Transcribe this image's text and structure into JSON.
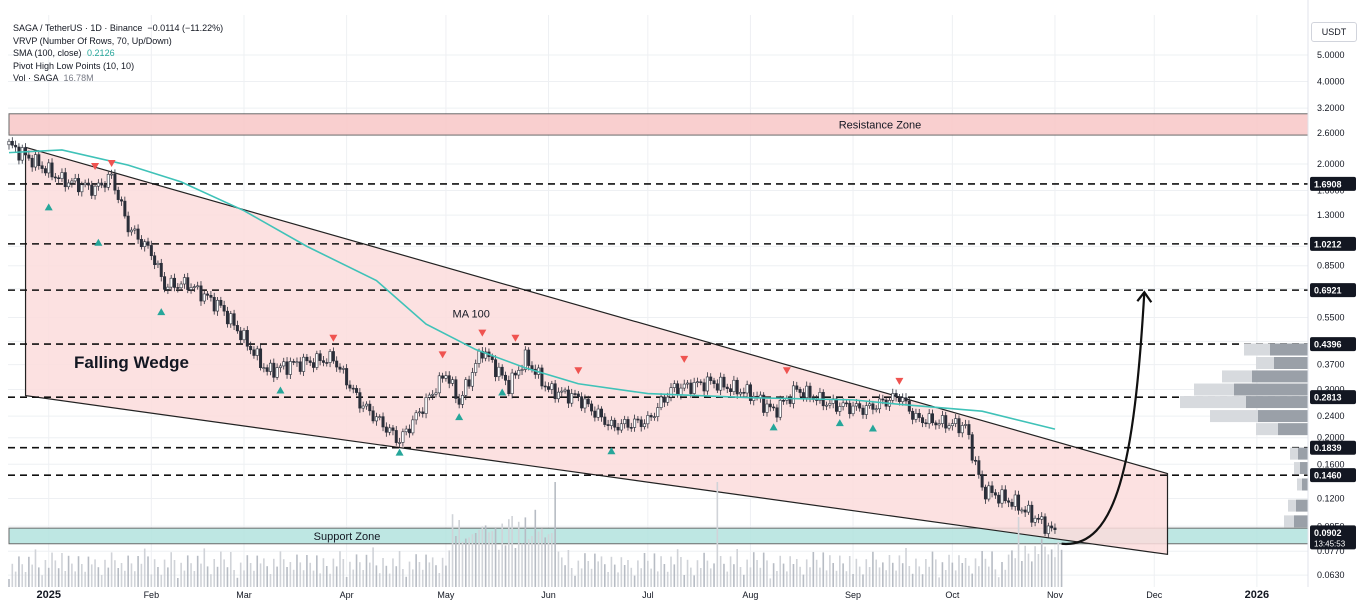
{
  "legend": {
    "symbol": "SAGA / TetherUS · 1D · Binance",
    "change": "−0.0114 (−11.22%)",
    "vrvp": "VRVP (Number Of Rows, 70, Up/Down)",
    "sma": "SMA (100, close)",
    "sma_value": "0.2126",
    "pivot": "Pivot High Low Points (10, 10)",
    "vol": "Vol · SAGA",
    "vol_value": "16.78M"
  },
  "currency": "USDT",
  "colors": {
    "up": "#26a69a",
    "down": "#ef5350",
    "wedge_fill": "#fbdcdc",
    "resistance_fill": "#f9caca",
    "support_fill": "#b7e5e1",
    "sma_line": "#3fc2b8"
  },
  "chart_data": {
    "type": "candlestick",
    "y_scale": "log",
    "ylim": [
      0.057,
      7.0
    ],
    "x_axis_labels": [
      {
        "label": "2025",
        "date": "2025-01-01"
      },
      {
        "label": "Feb",
        "date": "2025-02-01"
      },
      {
        "label": "Mar",
        "date": "2025-03-01"
      },
      {
        "label": "Apr",
        "date": "2025-04-01"
      },
      {
        "label": "May",
        "date": "2025-05-01"
      },
      {
        "label": "Jun",
        "date": "2025-06-01"
      },
      {
        "label": "Jul",
        "date": "2025-07-01"
      },
      {
        "label": "Aug",
        "date": "2025-08-01"
      },
      {
        "label": "Sep",
        "date": "2025-09-01"
      },
      {
        "label": "Oct",
        "date": "2025-10-01"
      },
      {
        "label": "Nov",
        "date": "2025-11-01"
      },
      {
        "label": "Dec",
        "date": "2025-12-01"
      },
      {
        "label": "2026",
        "date": "2026-01-01"
      }
    ],
    "y_tick_labels": [
      "5.0000",
      "4.0000",
      "3.2000",
      "2.6000",
      "2.0000",
      "1.6000",
      "1.3000",
      "1.0000",
      "0.8500",
      "0.7000",
      "0.5500",
      "0.4500",
      "0.3700",
      "0.3000",
      "0.2400",
      "0.2000",
      "0.1600",
      "0.1200",
      "0.0950",
      "0.0770",
      "0.0630"
    ],
    "horizontal_levels": [
      {
        "label": "1.6908",
        "value": 1.6908
      },
      {
        "label": "1.0212",
        "value": 1.0212
      },
      {
        "label": "0.6921",
        "value": 0.6921
      },
      {
        "label": "0.4396",
        "value": 0.4396
      },
      {
        "label": "0.2813",
        "value": 0.2813
      },
      {
        "label": "0.1839",
        "value": 0.1839
      },
      {
        "label": "0.1460",
        "value": 0.146
      }
    ],
    "last_price": {
      "label": "0.0902",
      "value": 0.0902,
      "countdown": "13:45:53"
    },
    "zones": [
      {
        "name": "Resistance Zone",
        "from": 2.55,
        "to": 3.05,
        "start": "2024-12-20",
        "end": "2026-01-31"
      },
      {
        "name": "Support Zone",
        "from": 0.082,
        "to": 0.0935,
        "start": "2024-12-20",
        "end": "2026-01-31"
      }
    ],
    "annotations": [
      {
        "text": "Falling Wedge",
        "date": "2025-01-26",
        "price": 0.36
      },
      {
        "text": "MA 100",
        "date": "2025-05-03",
        "price": 0.55
      }
    ],
    "wedge": {
      "upper": [
        {
          "date": "2024-12-25",
          "price": 2.3
        },
        {
          "date": "2025-12-05",
          "price": 0.148
        }
      ],
      "lower": [
        {
          "date": "2024-12-25",
          "price": 0.285
        },
        {
          "date": "2025-12-05",
          "price": 0.075
        }
      ]
    },
    "projection": {
      "from": {
        "date": "2025-11-03",
        "price": 0.082
      },
      "to": {
        "date": "2025-11-28",
        "price": 0.68
      }
    },
    "anchors": [
      [
        "2024-12-20",
        2.35
      ],
      [
        "2025-01-05",
        1.75
      ],
      [
        "2025-01-15",
        1.62
      ],
      [
        "2025-01-20",
        1.8
      ],
      [
        "2025-01-25",
        1.18
      ],
      [
        "2025-02-01",
        0.95
      ],
      [
        "2025-02-05",
        0.72
      ],
      [
        "2025-02-12",
        0.73
      ],
      [
        "2025-02-22",
        0.6
      ],
      [
        "2025-03-01",
        0.46
      ],
      [
        "2025-03-08",
        0.35
      ],
      [
        "2025-03-15",
        0.37
      ],
      [
        "2025-03-28",
        0.39
      ],
      [
        "2025-04-05",
        0.27
      ],
      [
        "2025-04-17",
        0.195
      ],
      [
        "2025-04-25",
        0.27
      ],
      [
        "2025-05-01",
        0.345
      ],
      [
        "2025-05-05",
        0.27
      ],
      [
        "2025-05-12",
        0.42
      ],
      [
        "2025-05-20",
        0.31
      ],
      [
        "2025-05-25",
        0.39
      ],
      [
        "2025-06-01",
        0.3
      ],
      [
        "2025-06-10",
        0.28
      ],
      [
        "2025-06-20",
        0.22
      ],
      [
        "2025-07-01",
        0.23
      ],
      [
        "2025-07-08",
        0.3
      ],
      [
        "2025-07-20",
        0.32
      ],
      [
        "2025-08-01",
        0.29
      ],
      [
        "2025-08-08",
        0.25
      ],
      [
        "2025-08-15",
        0.3
      ],
      [
        "2025-08-25",
        0.265
      ],
      [
        "2025-09-05",
        0.255
      ],
      [
        "2025-09-15",
        0.285
      ],
      [
        "2025-09-20",
        0.235
      ],
      [
        "2025-10-05",
        0.22
      ],
      [
        "2025-10-10",
        0.13
      ],
      [
        "2025-10-20",
        0.115
      ],
      [
        "2025-10-28",
        0.098
      ],
      [
        "2025-11-01",
        0.09
      ]
    ],
    "sma100": [
      [
        "2024-12-20",
        2.2
      ],
      [
        "2025-01-05",
        2.25
      ],
      [
        "2025-01-25",
        1.98
      ],
      [
        "2025-02-10",
        1.72
      ],
      [
        "2025-03-01",
        1.35
      ],
      [
        "2025-03-20",
        1.0
      ],
      [
        "2025-04-10",
        0.75
      ],
      [
        "2025-04-25",
        0.52
      ],
      [
        "2025-05-10",
        0.42
      ],
      [
        "2025-05-25",
        0.36
      ],
      [
        "2025-06-10",
        0.315
      ],
      [
        "2025-07-01",
        0.29
      ],
      [
        "2025-08-01",
        0.28
      ],
      [
        "2025-09-01",
        0.275
      ],
      [
        "2025-09-15",
        0.265
      ],
      [
        "2025-10-10",
        0.25
      ],
      [
        "2025-11-01",
        0.215
      ]
    ],
    "pivot_highs": [
      [
        "2025-01-15",
        1.95
      ],
      [
        "2025-01-20",
        2.0
      ],
      [
        "2025-03-28",
        0.46
      ],
      [
        "2025-04-30",
        0.4
      ],
      [
        "2025-05-12",
        0.48
      ],
      [
        "2025-05-22",
        0.46
      ],
      [
        "2025-06-10",
        0.35
      ],
      [
        "2025-07-12",
        0.385
      ],
      [
        "2025-08-12",
        0.35
      ],
      [
        "2025-09-15",
        0.32
      ]
    ],
    "pivot_lows": [
      [
        "2025-01-01",
        1.4
      ],
      [
        "2025-01-16",
        1.04
      ],
      [
        "2025-02-04",
        0.58
      ],
      [
        "2025-03-12",
        0.3
      ],
      [
        "2025-04-17",
        0.178
      ],
      [
        "2025-05-05",
        0.24
      ],
      [
        "2025-05-18",
        0.295
      ],
      [
        "2025-06-20",
        0.18
      ],
      [
        "2025-08-08",
        0.22
      ],
      [
        "2025-08-28",
        0.228
      ],
      [
        "2025-09-07",
        0.218
      ]
    ],
    "volume_profile": [
      {
        "price": 0.42,
        "buy": 26,
        "sell": 38
      },
      {
        "price": 0.375,
        "buy": 18,
        "sell": 34
      },
      {
        "price": 0.335,
        "buy": 30,
        "sell": 56
      },
      {
        "price": 0.3,
        "buy": 40,
        "sell": 74
      },
      {
        "price": 0.27,
        "buy": 66,
        "sell": 62
      },
      {
        "price": 0.24,
        "buy": 48,
        "sell": 50
      },
      {
        "price": 0.215,
        "buy": 22,
        "sell": 30
      },
      {
        "price": 0.175,
        "buy": 8,
        "sell": 10
      },
      {
        "price": 0.155,
        "buy": 6,
        "sell": 8
      },
      {
        "price": 0.135,
        "buy": 5,
        "sell": 6
      },
      {
        "price": 0.113,
        "buy": 8,
        "sell": 12
      },
      {
        "price": 0.099,
        "buy": 10,
        "sell": 14
      }
    ]
  }
}
